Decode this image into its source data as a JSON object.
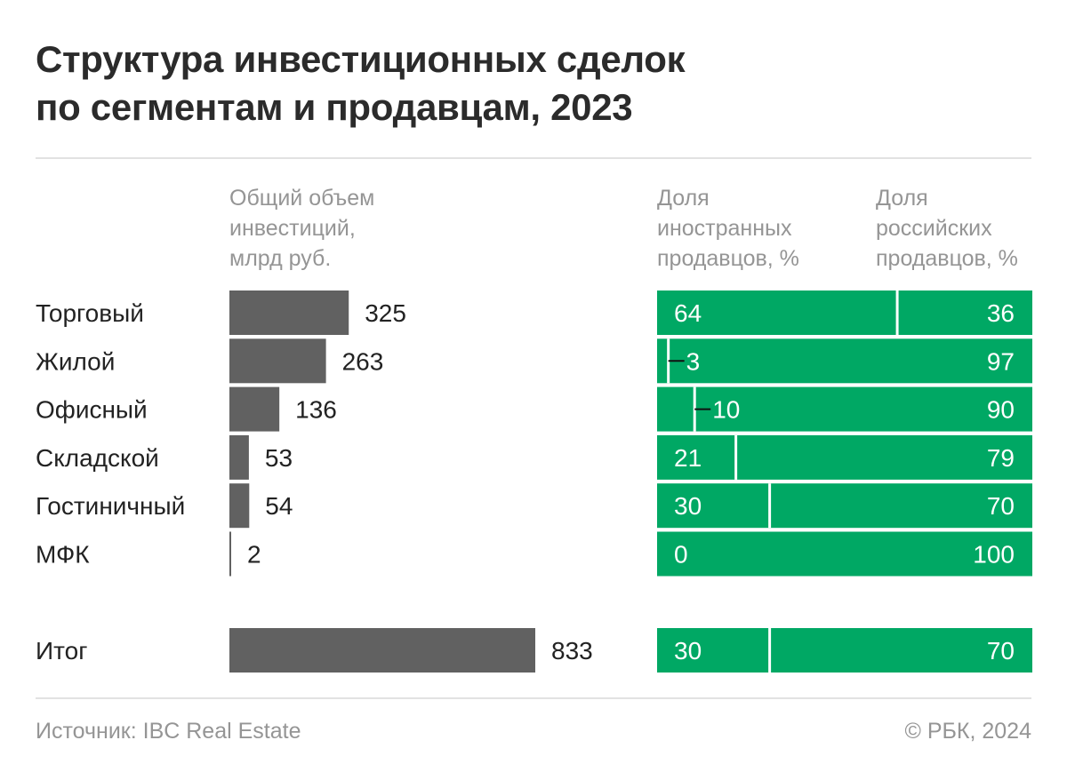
{
  "title_lines": [
    "Структура инвестиционных сделок",
    "по сегментам и продавцам, 2023"
  ],
  "headers": {
    "volume": [
      "Общий объем",
      "инвестиций,",
      "млрд руб."
    ],
    "foreign": [
      "Доля",
      "иностранных",
      "продавцов, %"
    ],
    "russian": [
      "Доля",
      "российских",
      "продавцов, %"
    ]
  },
  "colors": {
    "bar": "#616161",
    "share": "#00a864",
    "text": "#222222",
    "muted": "#959595"
  },
  "chart_data": {
    "type": "bar",
    "categories": [
      "Торговый",
      "Жилой",
      "Офисный",
      "Складской",
      "Гостиничный",
      "МФК"
    ],
    "volume": [
      325,
      263,
      136,
      53,
      54,
      2
    ],
    "foreign_share": [
      64,
      3,
      10,
      21,
      30,
      0
    ],
    "russian_share": [
      36,
      97,
      90,
      79,
      70,
      100
    ],
    "total": {
      "label": "Итог",
      "volume": 833,
      "foreign_share": 30,
      "russian_share": 70
    },
    "xlim_volume": [
      0,
      833
    ]
  },
  "footer": {
    "source": "Источник: IBC Real Estate",
    "copyright": "© РБК, 2024"
  }
}
